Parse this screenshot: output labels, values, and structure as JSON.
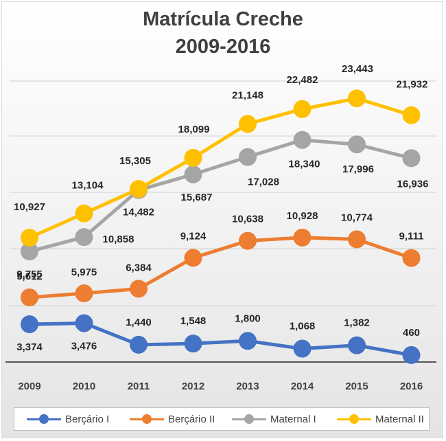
{
  "title_lines": [
    "Matrícula Creche",
    "2009-2016"
  ],
  "chart_data": {
    "type": "line",
    "title": "Matrícula Creche 2009-2016",
    "categories": [
      "2009",
      "2010",
      "2011",
      "2012",
      "2013",
      "2014",
      "2015",
      "2016"
    ],
    "series": [
      {
        "name": "Berçário I",
        "color": "#4472c4",
        "values": [
          3374,
          3476,
          1440,
          1548,
          1800,
          1068,
          1382,
          460
        ],
        "labels": [
          "3,374",
          "3,476",
          "1,440",
          "1,548",
          "1,800",
          "1,068",
          "1,382",
          "460"
        ]
      },
      {
        "name": "Berçário II",
        "color": "#ed7d31",
        "values": [
          5612,
          5975,
          6384,
          9124,
          10638,
          10928,
          10774,
          9111
        ],
        "labels": [
          "5,612",
          "5,975",
          "6,384",
          "9,124",
          "10,638",
          "10,928",
          "10,774",
          "9,111"
        ]
      },
      {
        "name": "Maternal I",
        "color": "#a5a5a5",
        "values": [
          9755,
          10858,
          14482,
          15687,
          17028,
          18340,
          17996,
          16936
        ],
        "labels": [
          "9,755",
          "10,858",
          "14,482",
          "15,687",
          "17,028",
          "18,340",
          "17,996",
          "16,936"
        ]
      },
      {
        "name": "Maternal II",
        "color": "#ffc000",
        "values": [
          10927,
          13104,
          15305,
          18099,
          21148,
          22482,
          23443,
          21932
        ],
        "labels": [
          "10,927",
          "13,104",
          "15,305",
          "18,099",
          "21,148",
          "22,482",
          "23,443",
          "21,932"
        ]
      }
    ],
    "grid": true,
    "legend": "bottom"
  }
}
